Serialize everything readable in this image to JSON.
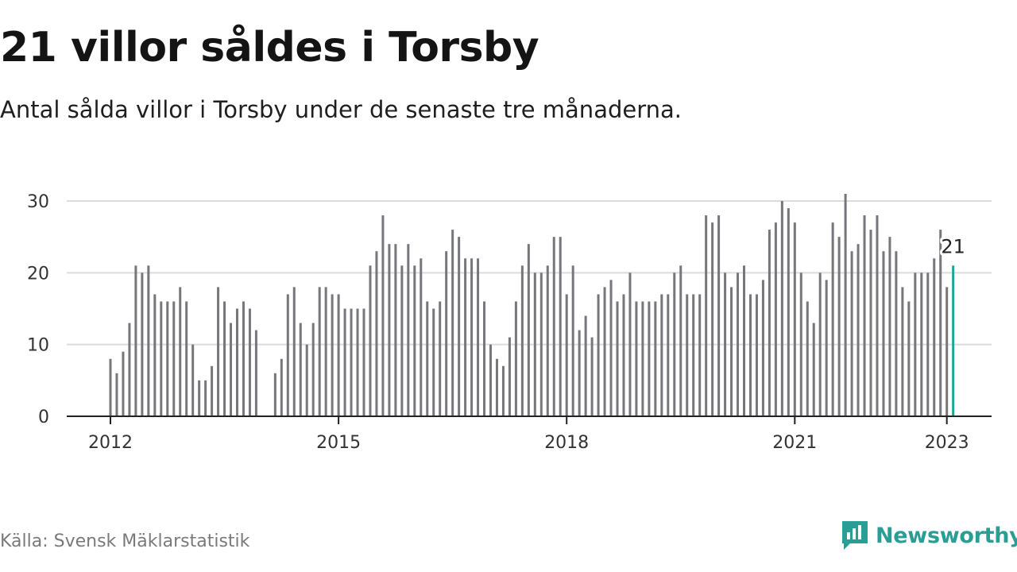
{
  "header": {
    "title": "21 villor såldes i Torsby",
    "subtitle": "Antal sålda villor i Torsby under de senaste tre månaderna."
  },
  "footer": {
    "source": "Källa: Svensk Mäklarstatistik",
    "brand": "Newsworthy",
    "brand_icon": "newsworthy-logo-icon"
  },
  "colors": {
    "bar": "#76767b",
    "highlight": "#1ba39c",
    "grid": "#dcdcdc",
    "axis": "#222222",
    "brand": "#2a9d94"
  },
  "chart_data": {
    "type": "bar",
    "title": "21 villor såldes i Torsby",
    "subtitle": "Antal sålda villor i Torsby under de senaste tre månaderna.",
    "xlabel": "",
    "ylabel": "",
    "ylim": [
      0,
      30
    ],
    "yticks": [
      0,
      10,
      20,
      30
    ],
    "xticks": [
      2012,
      2015,
      2018,
      2021,
      2023
    ],
    "x_start": "2012-01",
    "x_end": "2023-01",
    "grid": true,
    "highlight_label": "21",
    "values": [
      8,
      6,
      9,
      13,
      21,
      20,
      21,
      17,
      16,
      16,
      16,
      18,
      16,
      10,
      5,
      5,
      7,
      18,
      16,
      13,
      15,
      16,
      15,
      12,
      null,
      null,
      6,
      8,
      17,
      18,
      13,
      10,
      13,
      18,
      18,
      17,
      17,
      15,
      15,
      15,
      15,
      21,
      23,
      28,
      24,
      24,
      21,
      24,
      21,
      22,
      16,
      15,
      16,
      23,
      26,
      25,
      22,
      22,
      22,
      16,
      10,
      8,
      7,
      11,
      16,
      21,
      24,
      20,
      20,
      21,
      25,
      25,
      17,
      21,
      12,
      14,
      11,
      17,
      18,
      19,
      16,
      17,
      20,
      16,
      16,
      16,
      16,
      17,
      17,
      20,
      21,
      17,
      17,
      17,
      28,
      27,
      28,
      20,
      18,
      20,
      21,
      17,
      17,
      19,
      26,
      27,
      30,
      29,
      27,
      20,
      16,
      13,
      20,
      19,
      27,
      25,
      31,
      23,
      24,
      28,
      26,
      28,
      23,
      25,
      23,
      18,
      16,
      20,
      20,
      20,
      22,
      26,
      18,
      21
    ]
  }
}
